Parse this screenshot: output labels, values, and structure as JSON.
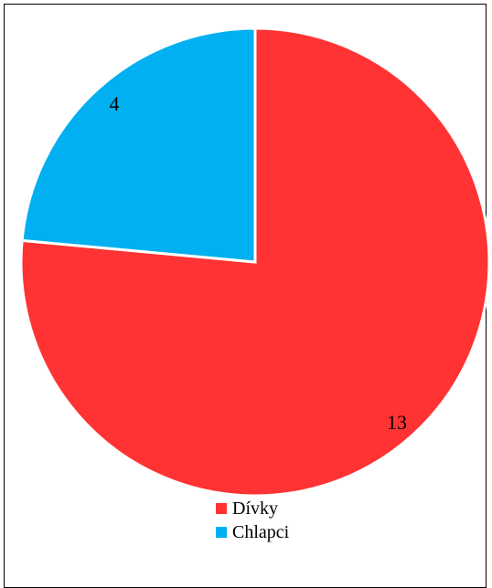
{
  "chart_data": {
    "type": "pie",
    "title": "",
    "categories": [
      "Dívky",
      "Chlapci"
    ],
    "values": [
      13,
      4
    ],
    "colors": [
      "#ff3333",
      "#00b0f0"
    ],
    "data_labels": [
      "13",
      "4"
    ],
    "legend": {
      "placement": "bottom",
      "entries": [
        "Dívky",
        "Chlapci"
      ]
    }
  }
}
